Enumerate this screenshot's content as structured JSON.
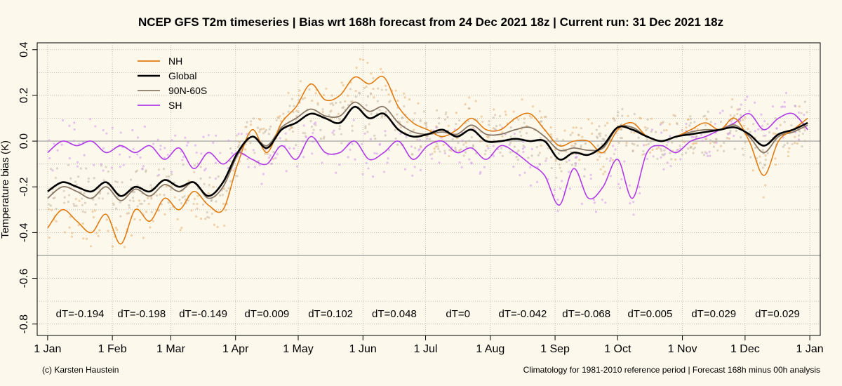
{
  "chart_data": {
    "type": "line",
    "title": "NCEP GFS T2m timeseries | Bias wrt 168h forecast from 24 Dec 2021 18z | Current run: 31 Dec 2021 18z",
    "ylabel": "Temperature bias (K)",
    "xlabel": "",
    "ylim": [
      -0.85,
      0.43
    ],
    "xlim": [
      -5,
      370
    ],
    "yticks": [
      -0.8,
      -0.6,
      -0.4,
      -0.2,
      0.0,
      0.2,
      0.4
    ],
    "ytick_labels": [
      "-0.8",
      "-0.6",
      "-0.4",
      "-0.2",
      "0.0",
      "0.2",
      "0.4"
    ],
    "xticks": [
      0,
      31,
      59,
      90,
      120,
      151,
      181,
      212,
      243,
      273,
      304,
      334,
      365
    ],
    "xtick_labels": [
      "1 Jan",
      "1 Feb",
      "1 Mar",
      "1 Apr",
      "1 May",
      "1 Jun",
      "1 Jul",
      "1 Aug",
      "1 Sep",
      "1 Oct",
      "1 Nov",
      "1 Dec",
      "1 Jan"
    ],
    "grid": true,
    "legend_position": "top-left",
    "hlines": [
      0.0,
      -0.5
    ],
    "colors": {
      "NH": "#e07b10",
      "Global": "#000000",
      "90N-60S": "#8a7866",
      "SH": "#b03ae6"
    },
    "series": [
      {
        "name": "NH",
        "x": [
          0,
          7,
          14,
          21,
          28,
          35,
          42,
          49,
          56,
          63,
          70,
          77,
          84,
          91,
          98,
          105,
          112,
          119,
          126,
          133,
          140,
          147,
          154,
          161,
          168,
          175,
          182,
          189,
          196,
          203,
          210,
          217,
          224,
          231,
          238,
          245,
          252,
          259,
          266,
          273,
          280,
          287,
          294,
          301,
          308,
          315,
          322,
          329,
          336,
          343,
          350,
          357,
          364
        ],
        "y": [
          -0.38,
          -0.3,
          -0.35,
          -0.4,
          -0.32,
          -0.45,
          -0.3,
          -0.35,
          -0.25,
          -0.3,
          -0.22,
          -0.28,
          -0.3,
          -0.1,
          0.05,
          -0.05,
          0.08,
          0.15,
          0.25,
          0.18,
          0.2,
          0.28,
          0.25,
          0.28,
          0.15,
          0.08,
          0.05,
          0.02,
          0.05,
          0.1,
          0.05,
          0.05,
          0.1,
          0.12,
          0.05,
          -0.02,
          0.0,
          0.0,
          -0.05,
          0.05,
          0.08,
          0.02,
          0.0,
          0.02,
          0.05,
          0.08,
          0.05,
          0.1,
          0.0,
          -0.15,
          0.0,
          0.05,
          0.1
        ]
      },
      {
        "name": "Global",
        "x": [
          0,
          7,
          14,
          21,
          28,
          35,
          42,
          49,
          56,
          63,
          70,
          77,
          84,
          91,
          98,
          105,
          112,
          119,
          126,
          133,
          140,
          147,
          154,
          161,
          168,
          175,
          182,
          189,
          196,
          203,
          210,
          217,
          224,
          231,
          238,
          245,
          252,
          259,
          266,
          273,
          280,
          287,
          294,
          301,
          308,
          315,
          322,
          329,
          336,
          343,
          350,
          357,
          364
        ],
        "y": [
          -0.22,
          -0.18,
          -0.2,
          -0.22,
          -0.18,
          -0.24,
          -0.2,
          -0.22,
          -0.17,
          -0.2,
          -0.18,
          -0.24,
          -0.18,
          -0.05,
          0.02,
          -0.03,
          0.05,
          0.08,
          0.12,
          0.1,
          0.08,
          0.15,
          0.1,
          0.12,
          0.05,
          0.02,
          0.03,
          0.05,
          0.02,
          0.05,
          0.0,
          0.0,
          0.01,
          0.0,
          0.0,
          -0.08,
          -0.05,
          -0.06,
          -0.02,
          0.06,
          0.05,
          0.02,
          0.0,
          0.02,
          0.03,
          0.04,
          0.05,
          0.06,
          0.03,
          -0.02,
          0.03,
          0.05,
          0.08
        ]
      },
      {
        "name": "90N-60S",
        "x": [
          0,
          7,
          14,
          21,
          28,
          35,
          42,
          49,
          56,
          63,
          70,
          77,
          84,
          91,
          98,
          105,
          112,
          119,
          126,
          133,
          140,
          147,
          154,
          161,
          168,
          175,
          182,
          189,
          196,
          203,
          210,
          217,
          224,
          231,
          238,
          245,
          252,
          259,
          266,
          273,
          280,
          287,
          294,
          301,
          308,
          315,
          322,
          329,
          336,
          343,
          350,
          357,
          364
        ],
        "y": [
          -0.25,
          -0.2,
          -0.22,
          -0.25,
          -0.2,
          -0.26,
          -0.21,
          -0.24,
          -0.19,
          -0.22,
          -0.18,
          -0.25,
          -0.2,
          -0.06,
          0.02,
          -0.02,
          0.06,
          0.1,
          0.14,
          0.11,
          0.11,
          0.17,
          0.13,
          0.15,
          0.08,
          0.04,
          0.03,
          0.04,
          0.03,
          0.07,
          0.03,
          0.03,
          0.05,
          0.06,
          0.02,
          -0.04,
          -0.03,
          -0.04,
          -0.03,
          0.06,
          0.06,
          0.02,
          0.0,
          0.02,
          0.04,
          0.05,
          0.05,
          0.07,
          0.02,
          -0.05,
          0.02,
          0.04,
          0.07
        ]
      },
      {
        "name": "SH",
        "x": [
          0,
          7,
          14,
          21,
          28,
          35,
          42,
          49,
          56,
          63,
          70,
          77,
          84,
          91,
          98,
          105,
          112,
          119,
          126,
          133,
          140,
          147,
          154,
          161,
          168,
          175,
          182,
          189,
          196,
          203,
          210,
          217,
          224,
          231,
          238,
          245,
          252,
          259,
          266,
          273,
          280,
          287,
          294,
          301,
          308,
          315,
          322,
          329,
          336,
          343,
          350,
          357,
          364
        ],
        "y": [
          -0.05,
          0.0,
          -0.02,
          0.0,
          -0.05,
          -0.02,
          -0.05,
          -0.02,
          -0.08,
          -0.03,
          -0.12,
          -0.05,
          -0.1,
          -0.05,
          -0.08,
          -0.1,
          -0.02,
          -0.08,
          0.02,
          -0.05,
          -0.05,
          0.0,
          -0.08,
          -0.05,
          0.0,
          -0.08,
          -0.02,
          0.0,
          -0.05,
          -0.03,
          -0.08,
          -0.02,
          -0.05,
          -0.1,
          -0.15,
          -0.28,
          -0.12,
          -0.25,
          -0.2,
          -0.08,
          -0.25,
          -0.05,
          -0.02,
          -0.05,
          0.0,
          0.02,
          0.05,
          0.08,
          0.12,
          0.05,
          0.1,
          0.12,
          0.05
        ]
      }
    ],
    "annotations": [
      {
        "x": 15.5,
        "text": "dT=-0.194"
      },
      {
        "x": 45,
        "text": "dT=-0.198"
      },
      {
        "x": 74.5,
        "text": "dT=-0.149"
      },
      {
        "x": 105,
        "text": "dT=0.009"
      },
      {
        "x": 135.5,
        "text": "dT=0.102"
      },
      {
        "x": 166,
        "text": "dT=0.048"
      },
      {
        "x": 196.5,
        "text": "dT=0"
      },
      {
        "x": 227.5,
        "text": "dT=-0.042"
      },
      {
        "x": 258,
        "text": "dT=-0.068"
      },
      {
        "x": 288.5,
        "text": "dT=0.005"
      },
      {
        "x": 319,
        "text": "dT=0.029"
      },
      {
        "x": 349.5,
        "text": "dT=0.029"
      }
    ],
    "annotation_y": -0.755
  },
  "footer": {
    "left": "(c) Karsten Haustein",
    "right": "Climatology for 1981-2010 reference period | Forecast 168h minus 00h analysis"
  }
}
